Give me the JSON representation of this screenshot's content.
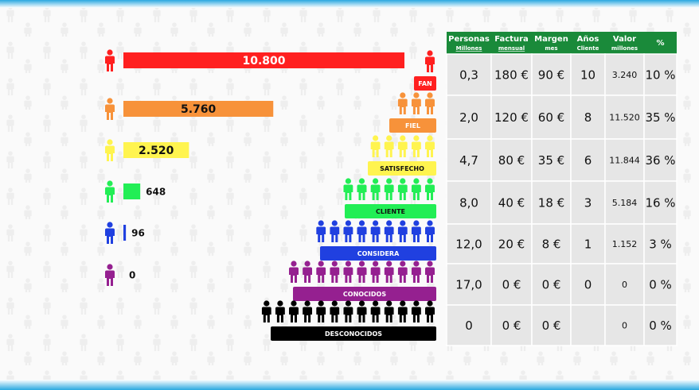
{
  "chart_data": {
    "type": "bar",
    "orientation": "horizontal",
    "values": [
      10800,
      5760,
      2520,
      648,
      96,
      0
    ],
    "value_labels": [
      "10.800",
      "5.760",
      "2.520",
      "648",
      "96",
      "0"
    ],
    "colors": [
      "#ff2020",
      "#f7923a",
      "#fff44f",
      "#22ee55",
      "#2040e0",
      "#952090"
    ],
    "xlim": [
      0,
      10800
    ]
  },
  "pyramid": {
    "levels": [
      "FAN",
      "FIEL",
      "SATISFECHO",
      "CLIENTE",
      "CONSIDERA",
      "CONOCIDOS",
      "DESCONOCIDOS"
    ],
    "colors": [
      "#ff2020",
      "#f7923a",
      "#fff44f",
      "#22ee55",
      "#2040e0",
      "#952090",
      "#000000"
    ]
  },
  "table": {
    "header": [
      [
        "Personas",
        "Millones"
      ],
      [
        "Factura",
        "mensual"
      ],
      [
        "Margen",
        "mes"
      ],
      [
        "Años",
        "Cliente"
      ],
      [
        "Valor",
        "millones"
      ],
      [
        "%"
      ]
    ],
    "header_color": "#1a8a3a",
    "rows": [
      [
        "0,3",
        "180 €",
        "90 €",
        "10",
        "3.240",
        "10 %"
      ],
      [
        "2,0",
        "120 €",
        "60 €",
        "8",
        "11.520",
        "35 %"
      ],
      [
        "4,7",
        "80 €",
        "35 €",
        "6",
        "11.844",
        "36 %"
      ],
      [
        "8,0",
        "40 €",
        "18 €",
        "3",
        "5.184",
        "16 %"
      ],
      [
        "12,0",
        "20 €",
        "8 €",
        "1",
        "1.152",
        "3 %"
      ],
      [
        "17,0",
        "0 €",
        "0 €",
        "0",
        "0",
        "0 %"
      ],
      [
        "0",
        "0 €",
        "0 €",
        null,
        "0",
        "0 %"
      ]
    ]
  }
}
